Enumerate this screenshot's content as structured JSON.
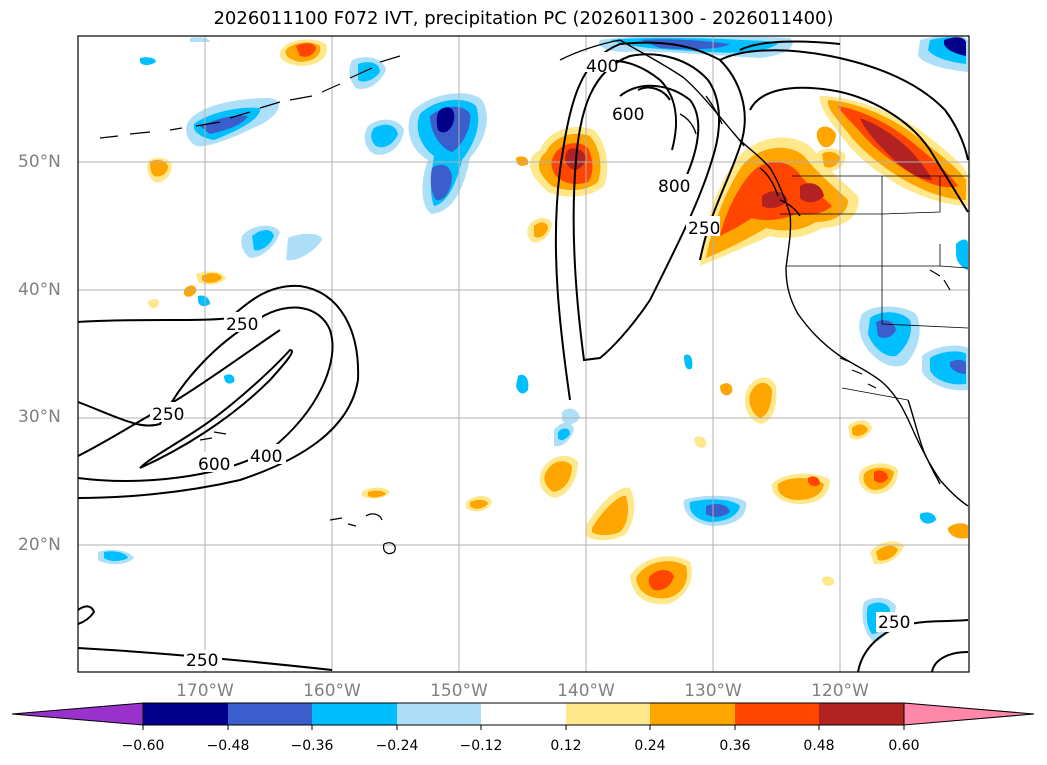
{
  "title": "2026011100 F072 IVT, precipitation PC (2026011300 - 2026011400)",
  "axes": {
    "lat_labels": [
      "50°N",
      "40°N",
      "30°N",
      "20°N"
    ],
    "lon_labels": [
      "170°W",
      "160°W",
      "150°W",
      "140°W",
      "130°W",
      "120°W"
    ]
  },
  "ivt_contour_labels": [
    "400",
    "600",
    "800",
    "250",
    "250",
    "250",
    "600",
    "400",
    "250",
    "250"
  ],
  "colorbar": {
    "ticks": [
      "−0.60",
      "−0.48",
      "−0.36",
      "−0.24",
      "−0.12",
      "0.12",
      "0.24",
      "0.36",
      "0.48",
      "0.60"
    ],
    "colors": [
      "#9932cc",
      "#00008b",
      "#3a5fcd",
      "#00bfff",
      "#ade0f8",
      "#ffffff",
      "#ffe88c",
      "#ffa500",
      "#ff4500",
      "#b22222",
      "#ff88aa"
    ]
  },
  "palette": {
    "grid": "#b0b0b0",
    "coast": "#000000",
    "label": "#808080"
  }
}
